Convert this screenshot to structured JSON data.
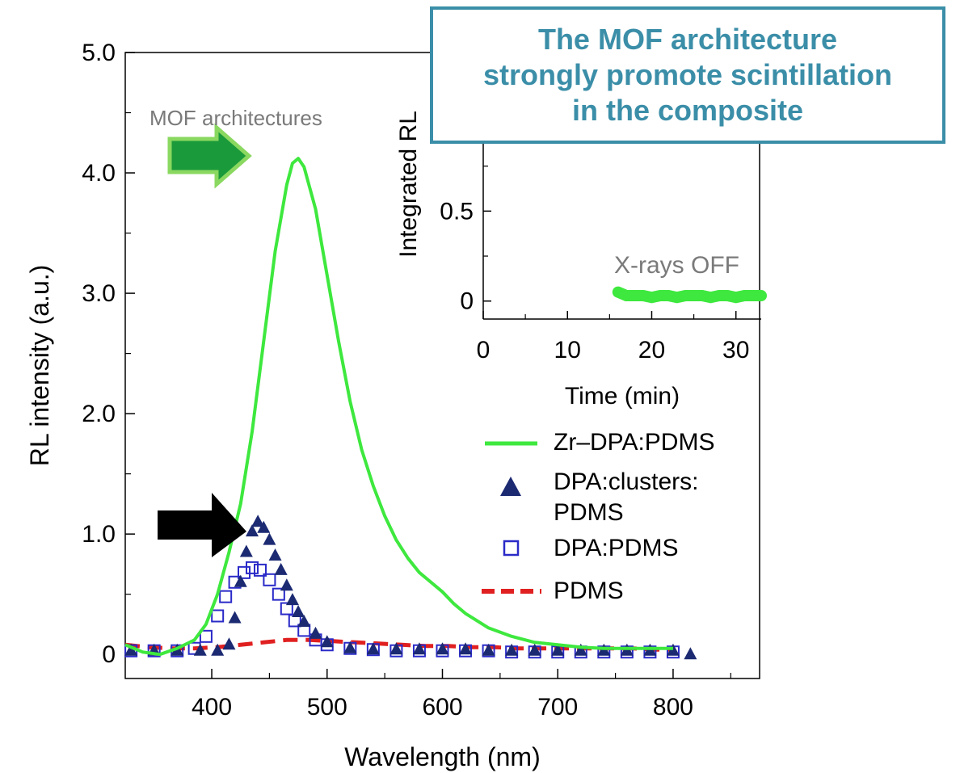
{
  "callout": {
    "lines": [
      "The MOF architecture",
      "strongly promote scintillation",
      "in the composite"
    ]
  },
  "annotations": {
    "mof_label": "MOF architectures",
    "xrays_off": "X-rays OFF"
  },
  "colors": {
    "zr": "#3ee83e",
    "dpa_clusters": "#1c2a72",
    "dpa": "#2a2ac8",
    "pdms": "#e02020",
    "callout": "#3b8ea8",
    "mof_arrow": "#1a9a3a",
    "mof_arrow_border": "#8ad860",
    "annotation_text": "#7a7a7a"
  },
  "chart_data": [
    {
      "type": "line",
      "xlabel": "Wavelength (nm)",
      "ylabel": "RL intensity (a.u.)",
      "xlim": [
        325,
        875
      ],
      "ylim": [
        -0.2,
        5.0
      ],
      "xticks": [
        400,
        500,
        600,
        700,
        800
      ],
      "yticks": [
        0,
        1.0,
        2.0,
        3.0,
        4.0,
        5.0
      ],
      "ytick_labels": [
        "0",
        "1.0",
        "2.0",
        "3.0",
        "4.0",
        "5.0"
      ],
      "legend": "right",
      "series": [
        {
          "name": "Zr–DPA:PDMS",
          "style": "line",
          "x": [
            325,
            340,
            355,
            370,
            385,
            395,
            405,
            415,
            425,
            435,
            445,
            455,
            465,
            470,
            475,
            480,
            490,
            500,
            510,
            520,
            530,
            540,
            550,
            560,
            570,
            580,
            590,
            600,
            610,
            620,
            640,
            660,
            680,
            700,
            720,
            740,
            760,
            780,
            800
          ],
          "y": [
            0.08,
            0.02,
            0.0,
            0.05,
            0.12,
            0.25,
            0.5,
            0.85,
            1.25,
            1.85,
            2.6,
            3.35,
            3.9,
            4.08,
            4.12,
            4.05,
            3.7,
            3.15,
            2.6,
            2.1,
            1.7,
            1.4,
            1.15,
            0.95,
            0.8,
            0.68,
            0.6,
            0.52,
            0.42,
            0.34,
            0.22,
            0.15,
            0.1,
            0.08,
            0.06,
            0.05,
            0.05,
            0.05,
            0.05
          ]
        },
        {
          "name": "DPA:clusters: PDMS",
          "style": "triangle",
          "x": [
            330,
            350,
            370,
            390,
            405,
            415,
            420,
            425,
            430,
            435,
            440,
            445,
            450,
            455,
            460,
            465,
            470,
            475,
            480,
            490,
            500,
            520,
            540,
            560,
            580,
            600,
            620,
            640,
            660,
            680,
            700,
            720,
            740,
            760,
            780,
            800,
            815
          ],
          "y": [
            0.03,
            0.03,
            0.03,
            0.03,
            0.03,
            0.08,
            0.3,
            0.6,
            0.85,
            1.02,
            1.1,
            1.05,
            0.95,
            0.82,
            0.7,
            0.57,
            0.45,
            0.35,
            0.27,
            0.17,
            0.1,
            0.05,
            0.04,
            0.04,
            0.04,
            0.04,
            0.04,
            0.03,
            0.03,
            0.03,
            0.03,
            0.03,
            0.03,
            0.03,
            0.03,
            0.03,
            0.0
          ]
        },
        {
          "name": "DPA:PDMS",
          "style": "square",
          "x": [
            330,
            350,
            370,
            385,
            395,
            405,
            412,
            420,
            428,
            435,
            442,
            450,
            458,
            465,
            472,
            480,
            490,
            500,
            520,
            540,
            560,
            580,
            600,
            620,
            640,
            660,
            680,
            700,
            720,
            740,
            760,
            780,
            800
          ],
          "y": [
            0.03,
            0.03,
            0.03,
            0.05,
            0.15,
            0.32,
            0.48,
            0.6,
            0.68,
            0.72,
            0.7,
            0.62,
            0.5,
            0.38,
            0.28,
            0.2,
            0.12,
            0.08,
            0.05,
            0.04,
            0.03,
            0.03,
            0.03,
            0.03,
            0.03,
            0.02,
            0.02,
            0.02,
            0.02,
            0.02,
            0.02,
            0.02,
            0.02
          ]
        },
        {
          "name": "PDMS",
          "style": "dashed",
          "x": [
            325,
            345,
            365,
            385,
            405,
            425,
            445,
            465,
            485,
            505,
            525,
            545,
            565,
            585,
            605,
            625,
            645,
            665,
            685,
            705,
            725,
            745,
            765,
            785,
            800
          ],
          "y": [
            0.08,
            0.06,
            0.05,
            0.05,
            0.06,
            0.08,
            0.1,
            0.12,
            0.12,
            0.11,
            0.1,
            0.09,
            0.08,
            0.07,
            0.07,
            0.06,
            0.06,
            0.05,
            0.05,
            0.05,
            0.05,
            0.05,
            0.05,
            0.04,
            0.04
          ]
        }
      ]
    },
    {
      "type": "scatter",
      "xlabel": "Time (min)",
      "ylabel": "Integrated RL",
      "xlim": [
        0,
        33
      ],
      "ylim": [
        -0.1,
        1.0
      ],
      "xticks": [
        0,
        10,
        20,
        30
      ],
      "yticks": [
        0,
        0.5
      ],
      "ytick_labels": [
        "0",
        "0.5"
      ],
      "series": [
        {
          "name": "",
          "x": [
            16,
            17,
            18,
            19,
            20,
            21,
            22,
            23,
            24,
            25,
            26,
            27,
            28,
            29,
            30,
            31,
            32,
            33
          ],
          "y": [
            0.05,
            0.03,
            0.03,
            0.03,
            0.02,
            0.03,
            0.03,
            0.02,
            0.03,
            0.03,
            0.03,
            0.02,
            0.03,
            0.03,
            0.02,
            0.03,
            0.03,
            0.03
          ]
        }
      ]
    }
  ]
}
